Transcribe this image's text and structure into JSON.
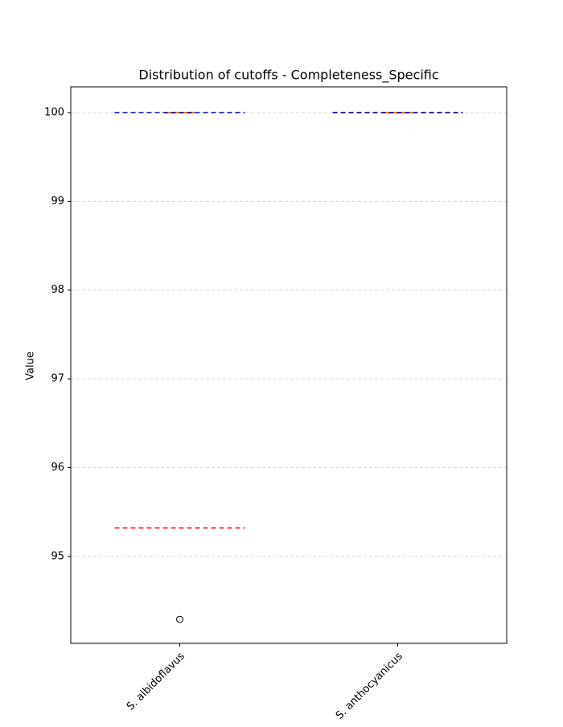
{
  "chart_data": {
    "type": "box",
    "title": "Distribution of cutoffs - Completeness_Specific",
    "ylabel": "Value",
    "categories": [
      "S. albidoflavus",
      "S. anthocyanicus"
    ],
    "boxes": [
      {
        "whisker_low": 100,
        "q1": 100,
        "median": 100,
        "q3": 100,
        "whisker_high": 100,
        "outliers": [
          94.29
        ]
      },
      {
        "whisker_low": 100,
        "q1": 100,
        "median": 100,
        "q3": 100,
        "whisker_high": 100,
        "outliers": []
      }
    ],
    "reference_lines": [
      {
        "color": "#ff0000",
        "values": [
          95.32,
          100
        ]
      },
      {
        "color": "#0000cc",
        "values": [
          100,
          100
        ]
      }
    ],
    "box_color": "#000000",
    "median_color": "#ff7f0e",
    "ylim": [
      94.02,
      100.29
    ],
    "yticks": [
      95,
      96,
      97,
      98,
      99,
      100
    ],
    "grid": true
  }
}
